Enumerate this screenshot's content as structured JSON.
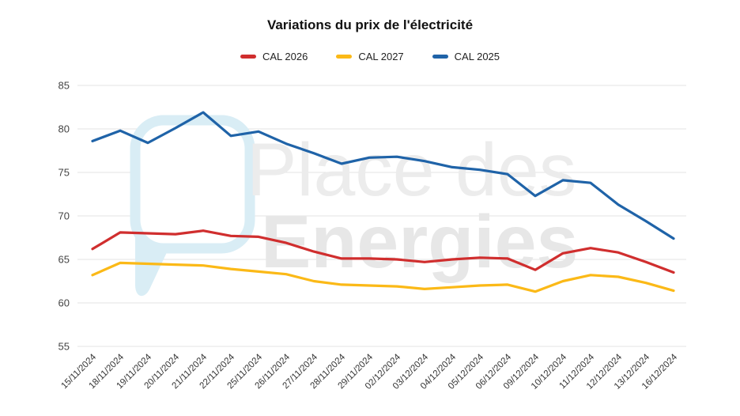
{
  "title": "Variations du prix de l'électricité",
  "watermark": {
    "line1": "Place des",
    "line2": "Energies",
    "logo": "speech-bubble-logo",
    "logo_color": "#d9edf5",
    "text_color": "#ececec"
  },
  "axes": {
    "y_ticks": [
      85,
      80,
      75,
      70,
      65,
      60,
      55
    ],
    "ylim": [
      55,
      85
    ],
    "grid": "horizontal"
  },
  "chart_data": {
    "type": "line",
    "title": "Variations du prix de l'électricité",
    "categories": [
      "15/11/2024",
      "18/11/2024",
      "19/11/2024",
      "20/11/2024",
      "21/11/2024",
      "22/11/2024",
      "25/11/2024",
      "26/11/2024",
      "27/11/2024",
      "28/11/2024",
      "29/11/2024",
      "02/12/2024",
      "03/12/2024",
      "04/12/2024",
      "05/12/2024",
      "06/12/2024",
      "09/12/2024",
      "10/12/2024",
      "11/12/2024",
      "12/12/2024",
      "13/12/2024",
      "16/12/2024"
    ],
    "series": [
      {
        "name": "CAL 2026",
        "color": "#d02e2e",
        "values": [
          66.2,
          68.1,
          68.0,
          67.9,
          68.3,
          67.7,
          67.6,
          66.9,
          65.9,
          65.1,
          65.1,
          65.0,
          64.7,
          65.0,
          65.2,
          65.1,
          63.8,
          65.7,
          66.3,
          65.8,
          64.7,
          63.5
        ]
      },
      {
        "name": "CAL 2027",
        "color": "#fbb917",
        "values": [
          63.2,
          64.6,
          64.5,
          64.4,
          64.3,
          63.9,
          63.6,
          63.3,
          62.5,
          62.1,
          62.0,
          61.9,
          61.6,
          61.8,
          62.0,
          62.1,
          61.3,
          62.5,
          63.2,
          63.0,
          62.3,
          61.4
        ]
      },
      {
        "name": "CAL 2025",
        "color": "#1f63a8",
        "values": [
          78.6,
          79.8,
          78.4,
          80.1,
          81.9,
          79.2,
          79.7,
          78.3,
          77.2,
          76.0,
          76.7,
          76.8,
          76.3,
          75.6,
          75.3,
          74.8,
          72.3,
          74.1,
          73.8,
          71.3,
          69.4,
          67.4
        ]
      }
    ],
    "ylim": [
      55,
      85
    ],
    "grid": "horizontal",
    "legend_position": "top"
  }
}
